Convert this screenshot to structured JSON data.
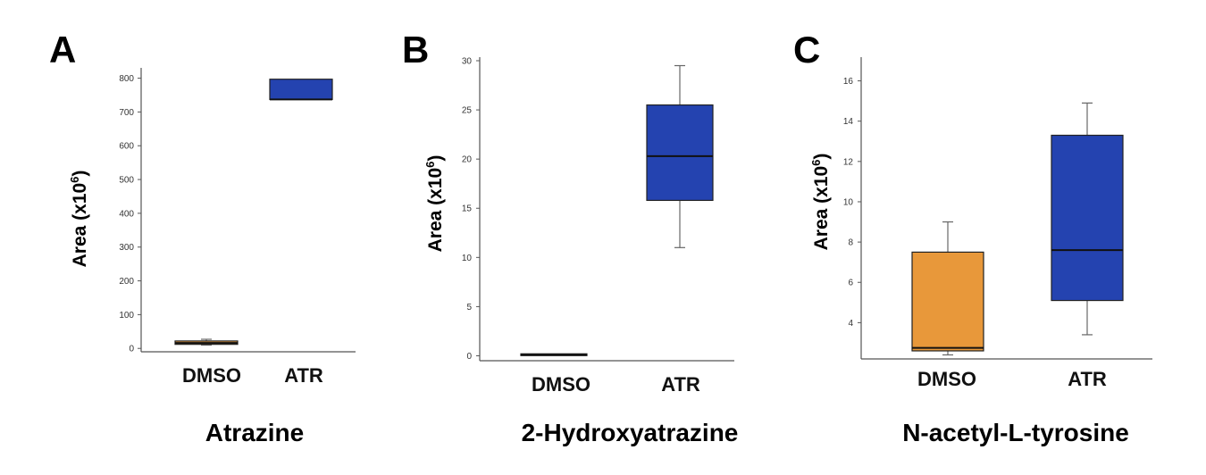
{
  "colors": {
    "dmso": "#E8983A",
    "atr": "#2443B0",
    "axis": "#555555",
    "median": "#111111"
  },
  "chart_data": [
    {
      "type": "box",
      "panel_label": "A",
      "title": "Atrazine",
      "ylabel_main": "Area (x10",
      "ylabel_sup": "6",
      "ylabel_end": ")",
      "categories": [
        "DMSO",
        "ATR"
      ],
      "ylim": [
        -10,
        820
      ],
      "yticks": [
        0,
        100,
        200,
        300,
        400,
        500,
        600,
        700,
        800
      ],
      "tick_labels": [
        "0",
        "100",
        "200",
        "300",
        "400",
        "500",
        "600",
        "700",
        "800"
      ],
      "boxes": [
        {
          "category": "DMSO",
          "whisker_low": 10,
          "q1": 12,
          "median": 16,
          "q3": 22,
          "whisker_high": 27,
          "color_key": "dmso"
        },
        {
          "category": "ATR",
          "whisker_low": 737,
          "q1": 737,
          "median": 737,
          "q3": 797,
          "whisker_high": 797,
          "color_key": "atr"
        }
      ]
    },
    {
      "type": "box",
      "panel_label": "B",
      "title": "2-Hydroxyatrazine",
      "ylabel_main": "Area (x10",
      "ylabel_sup": "6",
      "ylabel_end": ")",
      "categories": [
        "DMSO",
        "ATR"
      ],
      "ylim": [
        -0.5,
        30
      ],
      "yticks": [
        0,
        5,
        10,
        15,
        20,
        25,
        30
      ],
      "tick_labels": [
        "0",
        "5",
        "10",
        "15",
        "20",
        "25",
        "30"
      ],
      "boxes": [
        {
          "category": "DMSO",
          "whisker_low": 0.05,
          "q1": 0.05,
          "median": 0.1,
          "q3": 0.2,
          "whisker_high": 0.2,
          "color_key": "dmso"
        },
        {
          "category": "ATR",
          "whisker_low": 11,
          "q1": 15.8,
          "median": 20.3,
          "q3": 25.5,
          "whisker_high": 29.5,
          "color_key": "atr"
        }
      ]
    },
    {
      "type": "box",
      "panel_label": "C",
      "title": "N-acetyl-L-tyrosine",
      "ylabel_main": "Area (x10",
      "ylabel_sup": "6",
      "ylabel_end": ")",
      "categories": [
        "DMSO",
        "ATR"
      ],
      "ylim": [
        2.2,
        17
      ],
      "yticks": [
        4,
        6,
        8,
        10,
        12,
        14,
        16
      ],
      "tick_labels": [
        "4",
        "6",
        "8",
        "10",
        "12",
        "14",
        "16"
      ],
      "boxes": [
        {
          "category": "DMSO",
          "whisker_low": 2.4,
          "q1": 2.6,
          "median": 2.75,
          "q3": 7.5,
          "whisker_high": 9.0,
          "color_key": "dmso"
        },
        {
          "category": "ATR",
          "whisker_low": 3.4,
          "q1": 5.1,
          "median": 7.6,
          "q3": 13.3,
          "whisker_high": 14.9,
          "color_key": "atr"
        }
      ]
    }
  ]
}
